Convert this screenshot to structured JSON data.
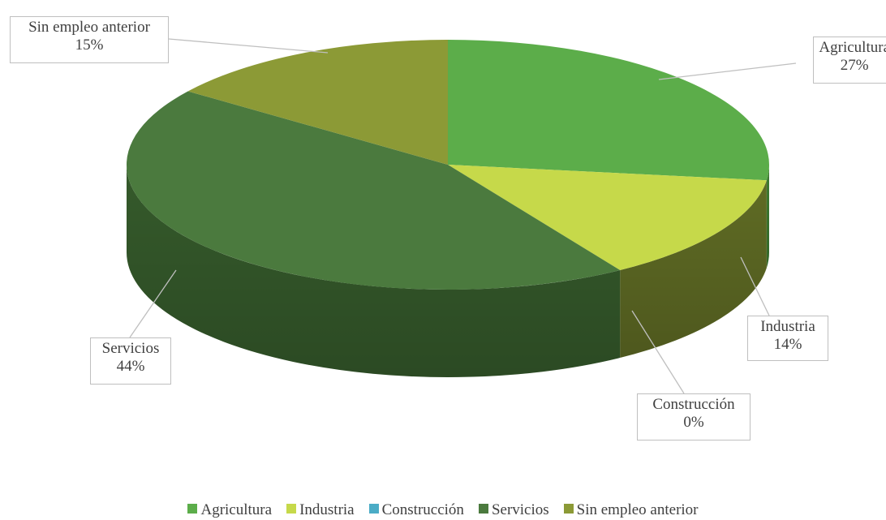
{
  "chart_data": {
    "type": "pie",
    "title": "",
    "categories": [
      "Agricultura",
      "Industria",
      "Construcción",
      "Servicios",
      "Sin empleo anterior"
    ],
    "values": [
      27,
      14,
      0,
      44,
      15
    ],
    "value_labels": [
      "27%",
      "14%",
      "0%",
      "44%",
      "15%"
    ],
    "colors": [
      "#5cad4a",
      "#c6d94a",
      "#4bacc6",
      "#4b7a3e",
      "#8c9a36"
    ],
    "side_colors": [
      "#3e7d31",
      "#5f6b24",
      "#2f7f93",
      "#355a2b",
      "#6b7426"
    ],
    "legend_position": "bottom",
    "style": "3d"
  },
  "legend": {
    "items": [
      {
        "label": "Agricultura",
        "color": "#5cad4a"
      },
      {
        "label": "Industria",
        "color": "#c6d94a"
      },
      {
        "label": "Construcción",
        "color": "#4bacc6"
      },
      {
        "label": "Servicios",
        "color": "#4b7a3e"
      },
      {
        "label": "Sin empleo anterior",
        "color": "#8c9a36"
      }
    ]
  }
}
